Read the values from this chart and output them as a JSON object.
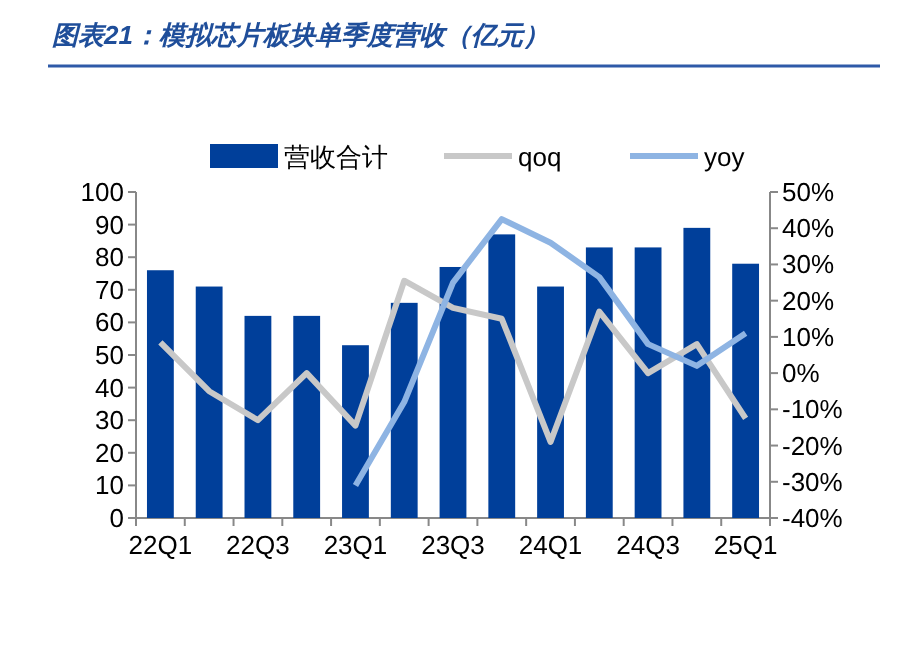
{
  "chart_data": {
    "type": "bar",
    "title": "图表21：模拟芯片板块单季度营收（亿元）",
    "categories": [
      "22Q1",
      null,
      "22Q3",
      null,
      "23Q1",
      null,
      "23Q3",
      null,
      "24Q1",
      null,
      "24Q3",
      null,
      "25Q1"
    ],
    "series": [
      {
        "name": "营收合计",
        "color": "#003f9a",
        "values": [
          76,
          71,
          62,
          62,
          53,
          66,
          77,
          87,
          71,
          83,
          83,
          89,
          78
        ]
      },
      {
        "name": "qoq",
        "type": "line",
        "axis": "y2",
        "color": "#c8c8c8",
        "values": [
          8.5,
          -5,
          -13,
          0,
          -14.5,
          25.5,
          18,
          15,
          -19,
          17,
          0,
          8,
          -12.5
        ]
      },
      {
        "name": "yoy",
        "type": "line",
        "axis": "y2",
        "color": "#8eb4e3",
        "values": [
          null,
          null,
          null,
          null,
          -31,
          -8,
          25,
          42.5,
          36,
          26.5,
          8,
          2,
          11
        ]
      }
    ],
    "ylim": [
      0,
      100
    ],
    "yticks": [
      0,
      10,
      20,
      30,
      40,
      50,
      60,
      70,
      80,
      90,
      100
    ],
    "y2lim": [
      -40,
      50
    ],
    "y2ticks": [
      {
        "value": -40,
        "label": "-40%"
      },
      {
        "value": -30,
        "label": "-30%"
      },
      {
        "value": -20,
        "label": "-20%"
      },
      {
        "value": -10,
        "label": "-10%"
      },
      {
        "value": 0,
        "label": "0%"
      },
      {
        "value": 10,
        "label": "10%"
      },
      {
        "value": 20,
        "label": "20%"
      },
      {
        "value": 30,
        "label": "30%"
      },
      {
        "value": 40,
        "label": "40%"
      },
      {
        "value": 50,
        "label": "50%"
      }
    ],
    "legend": "top",
    "grid": false
  }
}
